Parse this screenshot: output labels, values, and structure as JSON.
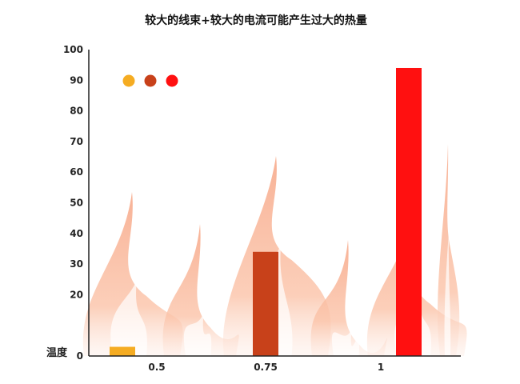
{
  "chart_data": {
    "type": "bar",
    "title": "较大的线束+较大的电流可能产生过大的热量",
    "xlabel": "",
    "ylabel": "温度",
    "categories": [
      "0.5",
      "0.75",
      "1"
    ],
    "values": [
      3,
      34,
      94
    ],
    "colors": [
      "#F5AC22",
      "#C8411A",
      "#FF1010"
    ],
    "ylim": [
      0,
      100
    ],
    "yticks": [
      0,
      20,
      30,
      40,
      50,
      60,
      70,
      80,
      90,
      100
    ],
    "grid": false,
    "legend": "top-left, unlabeled color dots",
    "background": "flame illustration"
  }
}
